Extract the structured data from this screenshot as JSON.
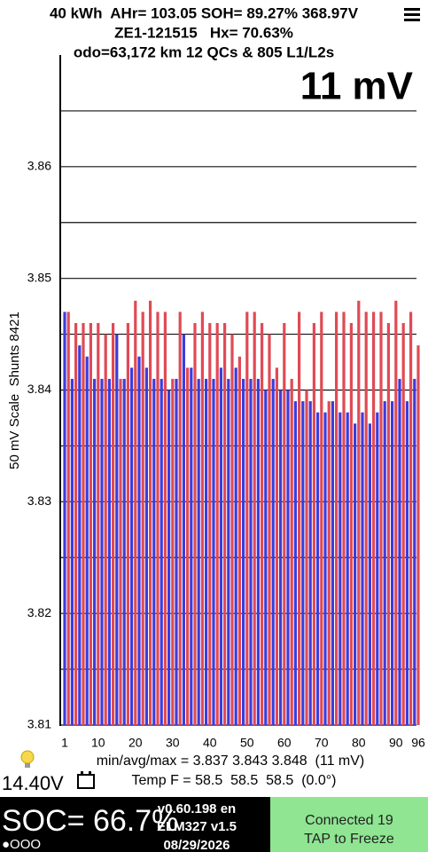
{
  "header": {
    "line1": "40 kWh  AHr= 103.05 SOH= 89.27% 368.97V",
    "line2": "ZE1-121515   Hx= 70.63%",
    "line3": "odo=63,172 km 12 QCs & 805 L1/L2s"
  },
  "chart_data": {
    "type": "bar",
    "annotation": "11 mV",
    "y_label": "50 mV Scale  Shunts 8421",
    "x": [
      1,
      2,
      3,
      4,
      5,
      6,
      7,
      8,
      9,
      10,
      11,
      12,
      13,
      14,
      15,
      16,
      17,
      18,
      19,
      20,
      21,
      22,
      23,
      24,
      25,
      26,
      27,
      28,
      29,
      30,
      31,
      32,
      33,
      34,
      35,
      36,
      37,
      38,
      39,
      40,
      41,
      42,
      43,
      44,
      45,
      46,
      47,
      48,
      49,
      50,
      51,
      52,
      53,
      54,
      55,
      56,
      57,
      58,
      59,
      60,
      61,
      62,
      63,
      64,
      65,
      66,
      67,
      68,
      69,
      70,
      71,
      72,
      73,
      74,
      75,
      76,
      77,
      78,
      79,
      80,
      81,
      82,
      83,
      84,
      85,
      86,
      87,
      88,
      89,
      90,
      91,
      92,
      93,
      94,
      95,
      96
    ],
    "values": [
      3.847,
      3.847,
      3.841,
      3.846,
      3.844,
      3.846,
      3.843,
      3.846,
      3.841,
      3.846,
      3.841,
      3.845,
      3.841,
      3.846,
      3.845,
      3.841,
      3.841,
      3.846,
      3.842,
      3.848,
      3.843,
      3.847,
      3.842,
      3.848,
      3.841,
      3.847,
      3.841,
      3.847,
      3.84,
      3.841,
      3.841,
      3.847,
      3.845,
      3.842,
      3.842,
      3.846,
      3.841,
      3.847,
      3.841,
      3.846,
      3.841,
      3.846,
      3.842,
      3.846,
      3.841,
      3.845,
      3.842,
      3.843,
      3.841,
      3.847,
      3.841,
      3.847,
      3.841,
      3.846,
      3.84,
      3.845,
      3.841,
      3.842,
      3.84,
      3.846,
      3.84,
      3.841,
      3.839,
      3.847,
      3.839,
      3.84,
      3.839,
      3.846,
      3.838,
      3.847,
      3.838,
      3.839,
      3.839,
      3.847,
      3.838,
      3.847,
      3.838,
      3.846,
      3.837,
      3.848,
      3.838,
      3.847,
      3.837,
      3.847,
      3.838,
      3.847,
      3.839,
      3.846,
      3.839,
      3.848,
      3.841,
      3.846,
      3.839,
      3.847,
      3.841,
      3.844
    ],
    "colors": [
      "#3c3cdc",
      "#e04a55"
    ],
    "xlim": [
      1,
      96
    ],
    "xticks": [
      1,
      10,
      20,
      30,
      40,
      50,
      60,
      70,
      80,
      90,
      96
    ],
    "ylim": [
      3.81,
      3.87
    ],
    "yticks": [
      3.81,
      3.82,
      3.83,
      3.84,
      3.85,
      3.86
    ],
    "minor_gridlines": [
      3.815,
      3.825,
      3.835,
      3.845,
      3.855,
      3.865
    ],
    "grid": true
  },
  "footer": {
    "voltage": "14.40V",
    "stats": "min/avg/max = 3.837 3.843 3.848  (11 mV)",
    "temp": "Temp F = 58.5  58.5  58.5  (0.0°)",
    "soc": "SOC= 66.7%",
    "version": [
      "v0.60.198 en",
      "ELM327 v1.5",
      "08/29/2026"
    ],
    "dots": "●OOO",
    "connected": "Connected 19",
    "tap": "TAP to Freeze"
  }
}
